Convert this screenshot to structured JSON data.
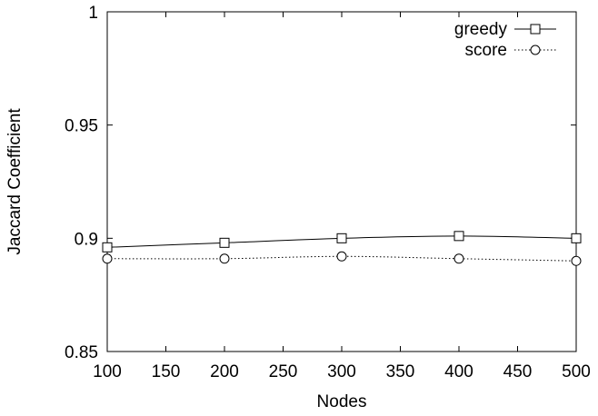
{
  "chart_data": {
    "type": "line",
    "x": [
      100,
      200,
      300,
      400,
      500
    ],
    "series": [
      {
        "name": "greedy",
        "values": [
          0.896,
          0.898,
          0.9,
          0.901,
          0.9
        ],
        "marker": "square",
        "line_style": "solid",
        "color": "#000000"
      },
      {
        "name": "score",
        "values": [
          0.891,
          0.891,
          0.892,
          0.891,
          0.89
        ],
        "marker": "circle",
        "line_style": "dotted",
        "color": "#000000"
      }
    ],
    "xlabel": "Nodes",
    "ylabel": "Jaccard Coefficient",
    "xlim": [
      100,
      500
    ],
    "ylim": [
      0.85,
      1
    ],
    "xticks": [
      100,
      150,
      200,
      250,
      300,
      350,
      400,
      450,
      500
    ],
    "yticks": [
      0.85,
      0.9,
      0.95,
      1
    ],
    "ytick_labels": [
      "0.85",
      "0.9",
      "0.95",
      "1"
    ],
    "grid": false,
    "legend_position": "top-right"
  }
}
